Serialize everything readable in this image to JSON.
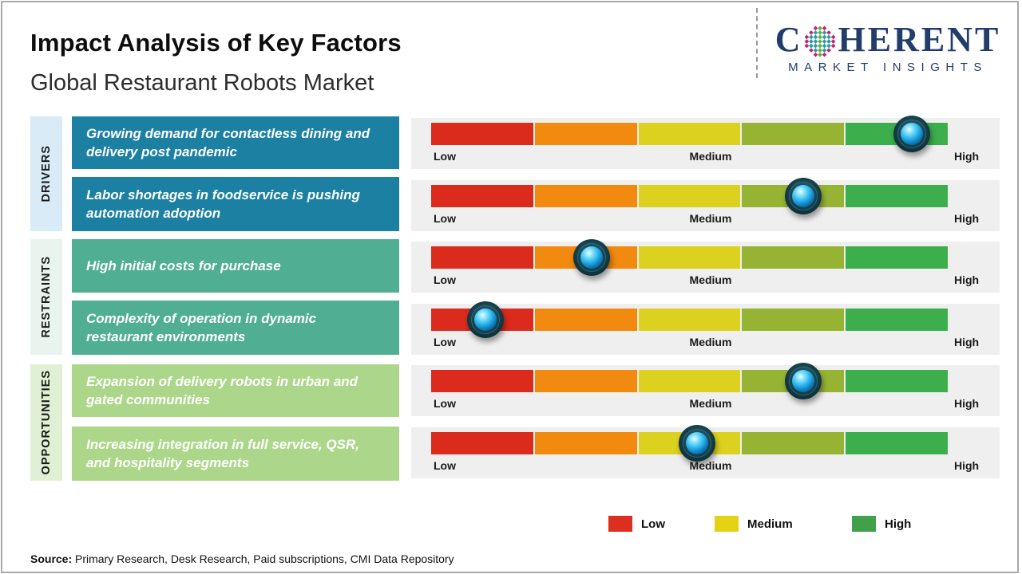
{
  "header": {
    "title": "Impact Analysis of Key Factors",
    "subtitle": "Global Restaurant Robots Market"
  },
  "logo": {
    "word_start": "C",
    "word_end": "HERENT",
    "tagline": "MARKET INSIGHTS",
    "navy": "#223d6b",
    "globe_colors": {
      "center": "#5fae3d",
      "mid": "#2a9aa3",
      "edge": "#c0266d"
    }
  },
  "chart_data": {
    "type": "table",
    "title": "Impact Analysis of Key Factors",
    "subtitle": "Global Restaurant Robots Market",
    "categories": [
      "DRIVERS",
      "RESTRAINTS",
      "OPPORTUNITIES"
    ],
    "scale": {
      "ticks": [
        "Low",
        "Medium",
        "High"
      ],
      "segment_colors": [
        "#db2b1c",
        "#f18a0e",
        "#ddd11f",
        "#96b334",
        "#3cae4b"
      ],
      "range": [
        0,
        1
      ]
    },
    "rows": [
      {
        "category": "DRIVERS",
        "factor": "Growing demand for contactless dining and delivery post pandemic",
        "impact_position": 0.93,
        "impact_label": "High"
      },
      {
        "category": "DRIVERS",
        "factor": "Labor shortages in foodservice is pushing automation adoption",
        "impact_position": 0.72,
        "impact_label": "Medium-High"
      },
      {
        "category": "RESTRAINTS",
        "factor": "High initial costs for purchase",
        "impact_position": 0.31,
        "impact_label": "Low-Medium"
      },
      {
        "category": "RESTRAINTS",
        "factor": "Complexity of operation in dynamic restaurant environments",
        "impact_position": 0.105,
        "impact_label": "Low"
      },
      {
        "category": "OPPORTUNITIES",
        "factor": "Expansion of delivery robots in urban and gated communities",
        "impact_position": 0.72,
        "impact_label": "Medium-High"
      },
      {
        "category": "OPPORTUNITIES",
        "factor": "Increasing integration in full service, QSR, and hospitality segments",
        "impact_position": 0.515,
        "impact_label": "Medium"
      }
    ],
    "legend": [
      {
        "label": "Low",
        "color": "#dc2f20"
      },
      {
        "label": "Medium",
        "color": "#e6d214"
      },
      {
        "label": "High",
        "color": "#41a049"
      }
    ],
    "legend_position": "bottom"
  },
  "footer": {
    "source_label": "Source:",
    "source_text": " Primary Research, Desk Research, Paid subscriptions, CMI Data Repository"
  }
}
